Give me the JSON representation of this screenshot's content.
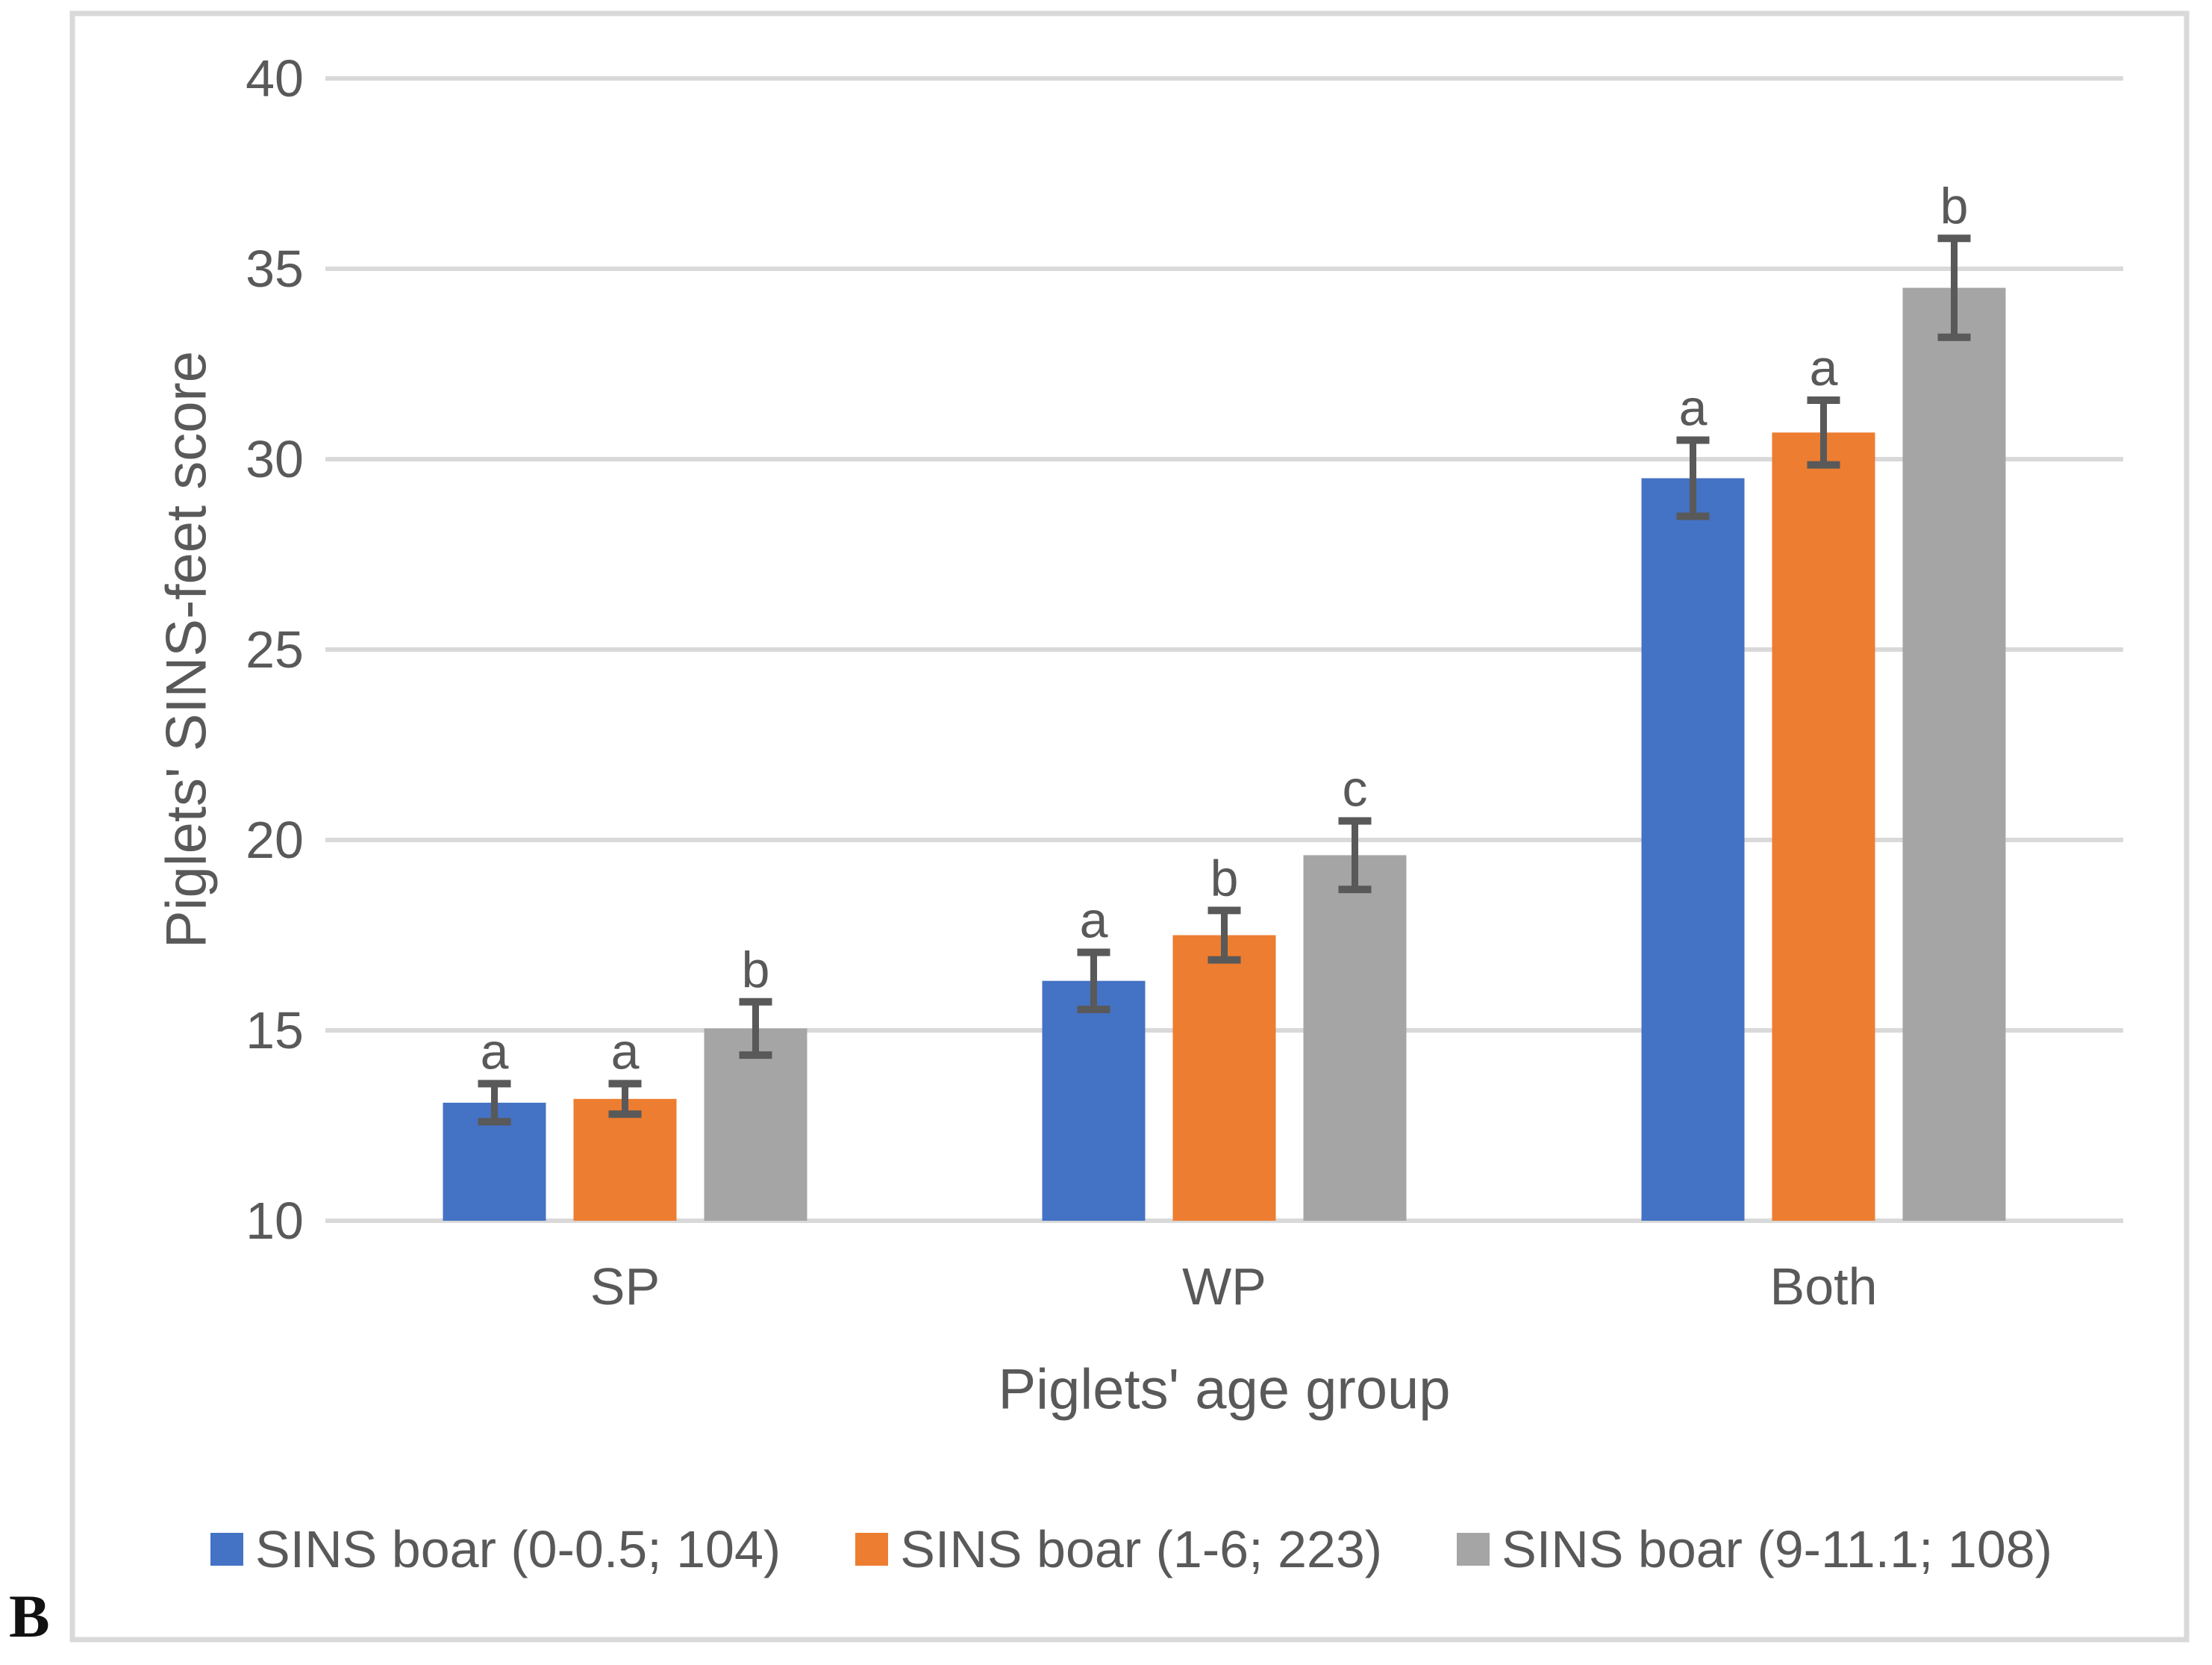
{
  "panel_label": "B",
  "colors": {
    "series_blue": "#4472C4",
    "series_orange": "#ED7D31",
    "series_gray": "#A5A5A5",
    "gridline": "#D9D9D9",
    "chart_border": "#D9D9D9",
    "error_bar": "#595959",
    "text": "#595959",
    "panel_label_text": "#111111"
  },
  "chart_data": {
    "type": "bar",
    "title": "",
    "xlabel": "Piglets' age group",
    "ylabel": "Piglets' SINS-feet score",
    "categories": [
      "SP",
      "WP",
      "Both"
    ],
    "ylim": [
      10,
      40
    ],
    "yticks": [
      10,
      15,
      20,
      25,
      30,
      35,
      40
    ],
    "grid": true,
    "legend_position": "bottom",
    "error_bars": true,
    "series": [
      {
        "name": "SINS boar (0-0.5; 104)",
        "color": "#4472C4",
        "values": [
          13.1,
          16.3,
          29.5
        ],
        "errors": [
          0.5,
          0.75,
          1.0
        ],
        "sig_letters": [
          "a",
          "a",
          "a"
        ]
      },
      {
        "name": "SINS boar (1-6; 223)",
        "color": "#ED7D31",
        "values": [
          13.2,
          17.5,
          30.7
        ],
        "errors": [
          0.4,
          0.65,
          0.85
        ],
        "sig_letters": [
          "a",
          "b",
          "a"
        ]
      },
      {
        "name": "SINS boar (9-11.1; 108)",
        "color": "#A5A5A5",
        "values": [
          15.05,
          19.6,
          34.5
        ],
        "errors": [
          0.7,
          0.9,
          1.3
        ],
        "sig_letters": [
          "b",
          "c",
          "b"
        ]
      }
    ]
  }
}
